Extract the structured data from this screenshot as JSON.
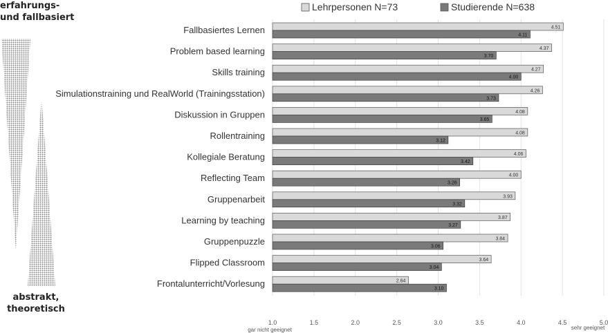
{
  "side_labels": {
    "top_line1": "erfahrungs-",
    "top_line2": "und fallbasiert",
    "bottom_line1": "abstrakt,",
    "bottom_line2": "theoretisch"
  },
  "colors": {
    "series_light": "#d9d9d9",
    "series_dark": "#7a7a7a",
    "pattern_dots": "#888888"
  },
  "chart_data": {
    "type": "bar",
    "orientation": "horizontal",
    "categories": [
      "Fallbasiertes Lernen",
      "Problem based learning",
      "Skills training",
      "Simulationstraining und RealWorld (Trainingsstation)",
      "Diskussion in Gruppen",
      "Rollentraining",
      "Kollegiale Beratung",
      "Reflecting Team",
      "Gruppenarbeit",
      "Learning by teaching",
      "Gruppenpuzzle",
      "Flipped Classroom",
      "Frontalunterricht/Vorlesung"
    ],
    "series": [
      {
        "name": "Lehrpersonen N=73",
        "values": [
          4.51,
          4.37,
          4.27,
          4.26,
          4.08,
          4.08,
          4.06,
          4.0,
          3.93,
          3.87,
          3.84,
          3.64,
          2.64
        ],
        "labels": [
          "4.51",
          "4.37",
          "4.27",
          "4.26",
          "4.08",
          "4.08",
          "4.06",
          "4.00",
          "3.93",
          "3.87",
          "3.84",
          "3.64",
          "2.64"
        ]
      },
      {
        "name": "Studierende N=638",
        "values": [
          4.11,
          3.7,
          4.0,
          3.73,
          3.65,
          3.12,
          3.42,
          3.26,
          3.32,
          3.27,
          3.06,
          3.04,
          3.1
        ],
        "labels": [
          "4.11",
          "3.70",
          "4.00",
          "3.73",
          "3.65",
          "3.12",
          "3.42",
          "3.26",
          "3.32",
          "3.27",
          "3.06",
          "3.04",
          "3.10"
        ]
      }
    ],
    "xlim": [
      1.0,
      5.0
    ],
    "xticks": [
      "1.0",
      "1.5",
      "2.0",
      "2.5",
      "3.0",
      "3.5",
      "4.0",
      "4.5",
      "5.0"
    ],
    "xmin_label": "gar nicht geeignet",
    "xmax_label": "sehr geeignet",
    "grid": true,
    "legend": "top"
  }
}
